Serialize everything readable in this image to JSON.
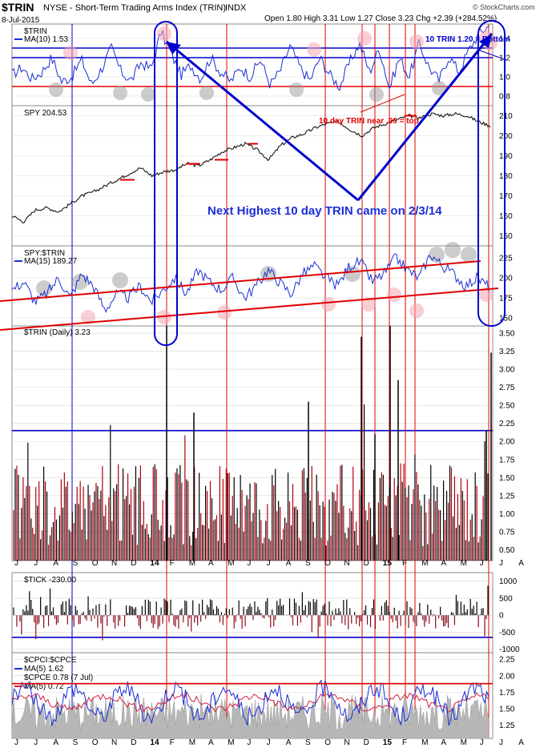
{
  "header": {
    "symbol": "$TRIN",
    "description": "NYSE - Short-Term Trading Arms Index (TRIN)",
    "exchange": "INDX",
    "date": "8-Jul-2015",
    "ohlc": "Open 1.80  High 3.31  Low 1.27  Close 3.23  Chg +2.39 (+284.52%)",
    "open": 1.8,
    "high": 3.31,
    "low": 1.27,
    "close": 3.23,
    "change": "+2.39 (+284.52%)",
    "logo": "© StockCharts.com"
  },
  "annotations": {
    "bottom_note": "10 TRIN 1.20 = Bottom",
    "trin_note": "10 day TRIN near .90 = top",
    "highest_note": "Next Highest 10 day TRIN came on 2/3/14"
  },
  "chart_data": [
    {
      "type": "line",
      "panel": "trin_ma10",
      "legend": [
        "$TRIN",
        "MA(10) 1.53"
      ],
      "ylim": [
        0.7,
        1.55
      ],
      "yticks": [
        "1.4",
        "1.2",
        "1.0",
        "0.8"
      ],
      "reference_lines": [
        {
          "y": 1.3,
          "color": "#0000cc"
        },
        {
          "y": 1.2,
          "color": "#0000cc"
        },
        {
          "y": 0.9,
          "color": "#e00000"
        }
      ],
      "series": [
        {
          "name": "MA(10)",
          "values": [
            1.02,
            1.1,
            0.98,
            1.05,
            1.2,
            0.95,
            1.0,
            1.18,
            0.92,
            1.08,
            1.3,
            1.05,
            0.96,
            1.15,
            1.08,
            1.47,
            1.25,
            1.02,
            1.12,
            0.98,
            1.2,
            1.05,
            0.95,
            1.1,
            1.0,
            1.18,
            0.92,
            1.06,
            1.32,
            1.1,
            0.96,
            1.2,
            1.02,
            0.9,
            1.15,
            1.35,
            1.05,
            1.3,
            0.88,
            1.2,
            1.0,
            1.35,
            1.1,
            0.96,
            1.22,
            1.05,
            1.28,
            1.45,
            1.53
          ]
        }
      ]
    },
    {
      "type": "line",
      "panel": "spy",
      "legend": [
        "SPY 204.53"
      ],
      "ylim": [
        145,
        215
      ],
      "yticks": [
        "210",
        "200",
        "190",
        "180",
        "170",
        "160",
        "150"
      ],
      "series": [
        {
          "name": "SPY",
          "values": [
            160,
            157,
            163,
            164,
            162,
            166,
            170,
            172,
            175,
            178,
            181,
            184,
            180,
            182,
            183,
            186,
            185,
            188,
            192,
            194,
            196,
            193,
            188,
            195,
            199,
            201,
            204,
            206,
            207,
            203,
            200,
            204,
            206,
            208,
            210,
            209,
            211,
            210,
            211,
            210,
            207,
            205
          ]
        }
      ]
    },
    {
      "type": "line",
      "panel": "spy_trin",
      "legend": [
        "SPY:$TRIN",
        "MA(15) 189.27"
      ],
      "ylim": [
        140,
        240
      ],
      "yticks": [
        "225",
        "200",
        "175",
        "150"
      ],
      "series": [
        {
          "name": "MA(15)",
          "values": [
            185,
            195,
            170,
            180,
            200,
            175,
            205,
            190,
            160,
            180,
            175,
            190,
            170,
            185,
            200,
            180,
            210,
            195,
            185,
            200,
            175,
            190,
            210,
            195,
            180,
            205,
            215,
            200,
            190,
            215,
            220,
            195,
            205,
            225,
            210,
            200,
            230,
            215,
            205,
            190,
            200,
            189
          ]
        }
      ]
    },
    {
      "type": "bar",
      "panel": "trin_daily",
      "legend": [
        "$TRIN (Daily) 3.23"
      ],
      "ylim": [
        0.35,
        3.6
      ],
      "yticks": [
        "3.50",
        "3.25",
        "3.00",
        "2.75",
        "2.50",
        "2.25",
        "2.00",
        "1.75",
        "1.50",
        "1.25",
        "1.00",
        "0.75",
        "0.50"
      ],
      "reference_lines": [
        {
          "y": 2.15,
          "color": "#0000cc"
        }
      ]
    },
    {
      "type": "bar",
      "panel": "tick",
      "legend": [
        "$TICK -230.00"
      ],
      "ylim": [
        -1100,
        1250
      ],
      "yticks": [
        "1000",
        "500",
        "0",
        "-500",
        "-1000"
      ],
      "reference_lines": [
        {
          "y": -650,
          "color": "#0000cc"
        }
      ]
    },
    {
      "type": "line",
      "panel": "cpci_cpce",
      "legend": [
        "$CPCI:$CPCE",
        "MA(5) 1.62",
        "$CPCE 0.78 (7 Jul)",
        "MA(5) 0.72"
      ],
      "ylim": [
        1.05,
        2.35
      ],
      "yticks": [
        "2.25",
        "2.00",
        "1.75",
        "1.50",
        "1.25"
      ],
      "reference_lines": [
        {
          "y": 1.88,
          "color": "#e00000"
        }
      ]
    }
  ],
  "x_axis": {
    "labels": [
      "J",
      "J",
      "A",
      "S",
      "O",
      "N",
      "D",
      "14",
      "F",
      "M",
      "A",
      "M",
      "J",
      "J",
      "A",
      "S",
      "O",
      "N",
      "D",
      "15",
      "F",
      "M",
      "A",
      "M",
      "J",
      "J",
      "A"
    ],
    "bold": [
      "14",
      "15"
    ]
  }
}
